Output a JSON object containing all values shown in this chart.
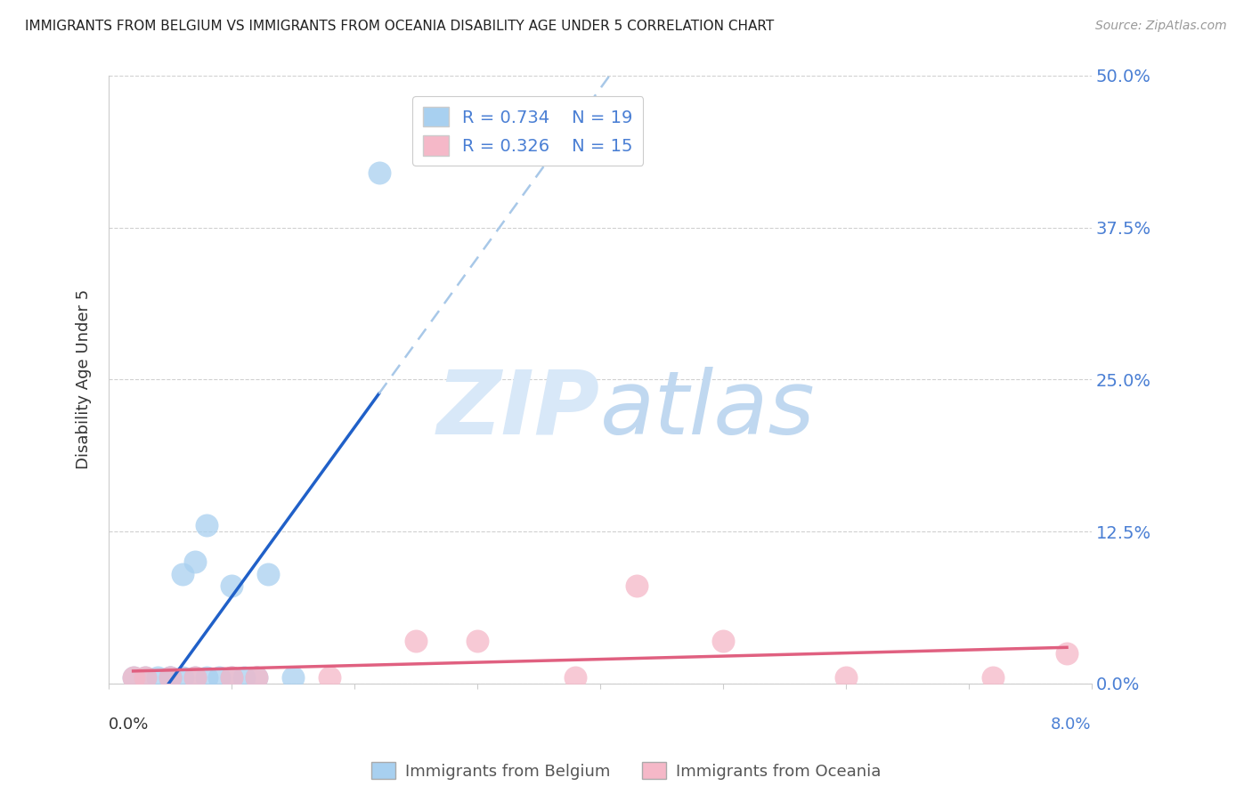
{
  "title": "IMMIGRANTS FROM BELGIUM VS IMMIGRANTS FROM OCEANIA DISABILITY AGE UNDER 5 CORRELATION CHART",
  "source": "Source: ZipAtlas.com",
  "ylabel": "Disability Age Under 5",
  "ytick_labels": [
    "0.0%",
    "12.5%",
    "25.0%",
    "37.5%",
    "50.0%"
  ],
  "ytick_values": [
    0.0,
    0.125,
    0.25,
    0.375,
    0.5
  ],
  "xlim": [
    0.0,
    0.08
  ],
  "ylim": [
    0.0,
    0.5
  ],
  "belgium_R": 0.734,
  "belgium_N": 19,
  "oceania_R": 0.326,
  "oceania_N": 15,
  "belgium_color": "#a8d0f0",
  "oceania_color": "#f5b8c8",
  "belgium_line_color": "#2060c8",
  "oceania_line_color": "#e06080",
  "dashed_line_color": "#a8c8e8",
  "watermark_zip_color": "#d8e8f8",
  "watermark_atlas_color": "#c0d8f0",
  "background_color": "#ffffff",
  "grid_color": "#d0d0d0",
  "title_color": "#222222",
  "right_axis_color": "#4a7fd4",
  "legend_text_color": "#4a7fd4",
  "belgium_x": [
    0.002,
    0.003,
    0.004,
    0.005,
    0.005,
    0.006,
    0.006,
    0.007,
    0.007,
    0.008,
    0.008,
    0.009,
    0.01,
    0.01,
    0.011,
    0.012,
    0.013,
    0.015,
    0.022
  ],
  "belgium_y": [
    0.005,
    0.005,
    0.005,
    0.005,
    0.005,
    0.005,
    0.09,
    0.005,
    0.1,
    0.005,
    0.13,
    0.005,
    0.005,
    0.08,
    0.005,
    0.005,
    0.09,
    0.005,
    0.42
  ],
  "oceania_x": [
    0.002,
    0.003,
    0.005,
    0.007,
    0.01,
    0.012,
    0.018,
    0.025,
    0.03,
    0.038,
    0.043,
    0.05,
    0.06,
    0.072,
    0.078
  ],
  "oceania_y": [
    0.005,
    0.005,
    0.005,
    0.005,
    0.005,
    0.005,
    0.005,
    0.035,
    0.035,
    0.005,
    0.08,
    0.035,
    0.005,
    0.005,
    0.025
  ]
}
